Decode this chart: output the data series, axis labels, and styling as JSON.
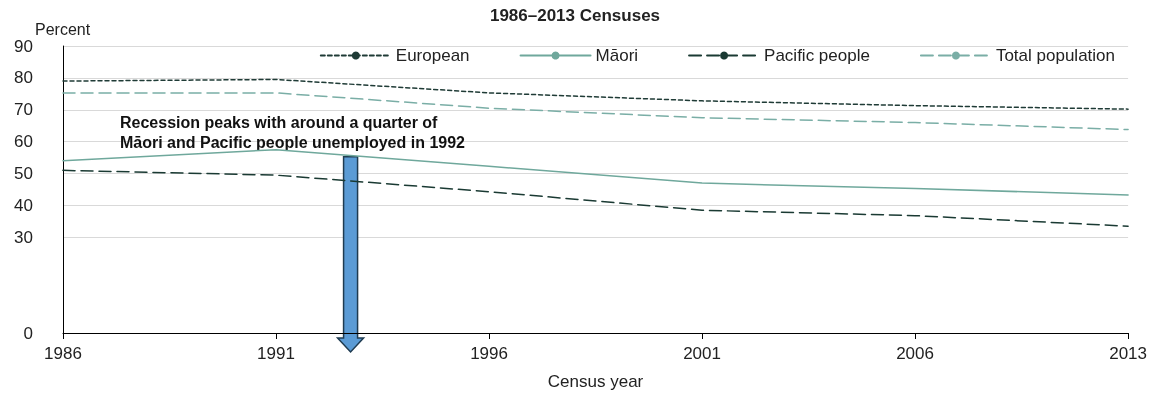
{
  "chart_data": {
    "type": "line",
    "title": "1986–2013 Censuses",
    "xlabel": "Census year",
    "ylabel": "Percent",
    "categories": [
      "1986",
      "1991",
      "1996",
      "2001",
      "2006",
      "2013"
    ],
    "series": [
      {
        "name": "European",
        "color": "#1f3b36",
        "line_style": "dotted",
        "values": [
          79,
          79.5,
          75.3,
          72.8,
          71.3,
          70.2
        ]
      },
      {
        "name": "Māori",
        "color": "#6fa89c",
        "line_style": "solid",
        "values": [
          54,
          57.5,
          52.3,
          47,
          45.3,
          43.3
        ]
      },
      {
        "name": "Pacific people",
        "color": "#1a3a33",
        "line_style": "dashed",
        "values": [
          51,
          49.5,
          44.3,
          38.5,
          36.8,
          33.5
        ]
      },
      {
        "name": "Total population",
        "color": "#7aaea6",
        "line_style": "dashed",
        "values": [
          75.3,
          75.3,
          70.5,
          67.5,
          66,
          63.8
        ]
      }
    ],
    "ylim": [
      0,
      90
    ],
    "yticks": [
      0,
      30,
      40,
      50,
      60,
      70,
      80,
      90
    ],
    "grid": "y",
    "legend": "top right",
    "marker": "none",
    "annotations": [
      "Recession peaks with around a quarter of\nMāori and Pacific people unemployed in 1992"
    ]
  }
}
